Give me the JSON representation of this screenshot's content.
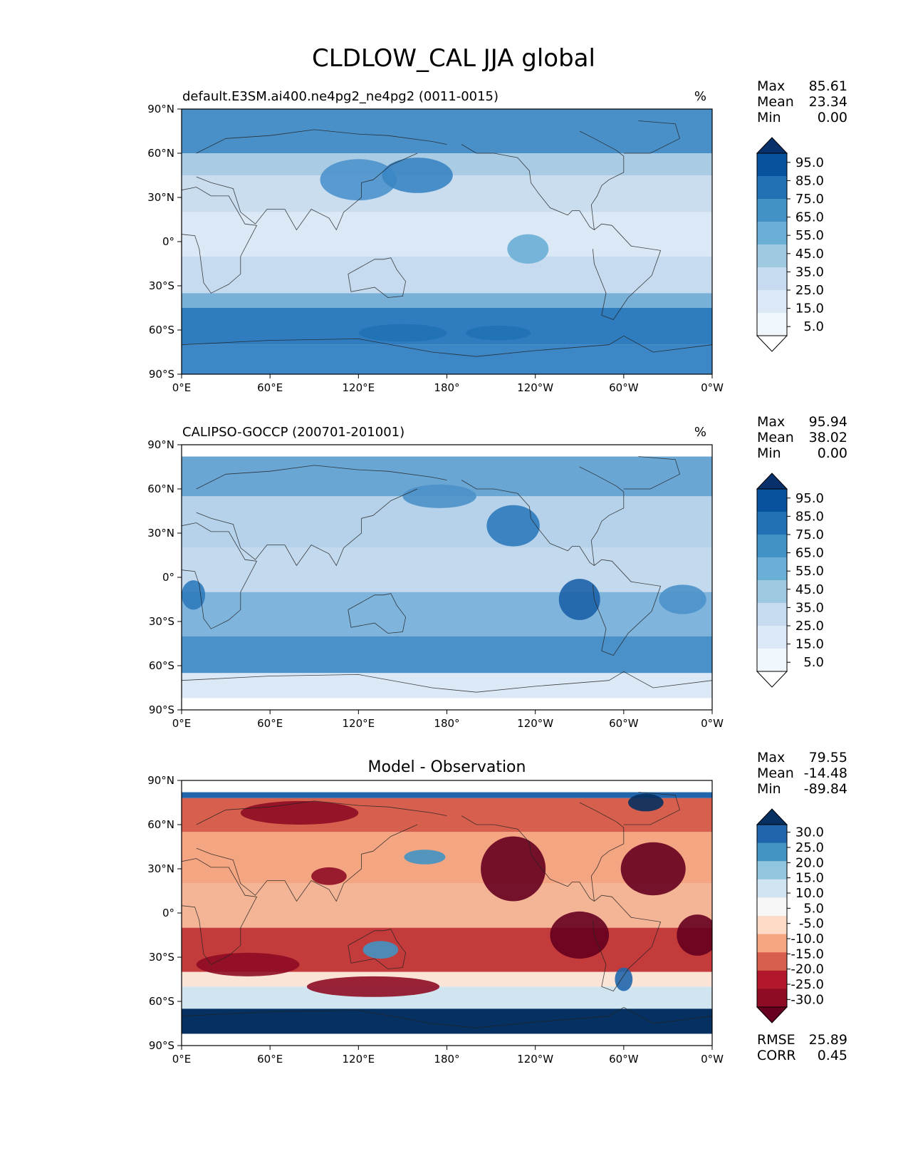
{
  "figure": {
    "title": "CLDLOW_CAL JJA global"
  },
  "chart_data": [
    {
      "type": "heatmap",
      "kind": "map",
      "title": "default.E3SM.ai400.ne4pg2_ne4pg2 (0011-0015)",
      "units": "%",
      "stats": [
        {
          "label": "Max",
          "value": "85.61"
        },
        {
          "label": "Mean",
          "value": "23.34"
        },
        {
          "label": "Min",
          "value": "0.00"
        }
      ],
      "x_ticks": [
        "0°E",
        "60°E",
        "120°E",
        "180°",
        "120°W",
        "60°W",
        "0°W"
      ],
      "y_ticks": [
        "90°N",
        "60°N",
        "30°N",
        "0°",
        "30°S",
        "60°S",
        "90°S"
      ],
      "xlim": [
        0,
        360
      ],
      "ylim": [
        -90,
        90
      ],
      "colorbar": {
        "labels": [
          "95.0",
          "85.0",
          "75.0",
          "65.0",
          "55.0",
          "45.0",
          "35.0",
          "25.0",
          "15.0",
          "5.0"
        ],
        "colors": [
          "#08306b",
          "#08519c",
          "#2171b5",
          "#4292c6",
          "#6baed6",
          "#9ecae1",
          "#c6dbef",
          "#dbe9f6",
          "#eff6fc",
          "#ffffff"
        ],
        "extend": "both"
      },
      "zonal_bands": [
        {
          "lat": [
            60,
            90
          ],
          "color": "#4a90c8"
        },
        {
          "lat": [
            45,
            60
          ],
          "color": "#a9cbe3"
        },
        {
          "lat": [
            20,
            45
          ],
          "color": "#c9ddef"
        },
        {
          "lat": [
            -10,
            20
          ],
          "color": "#dbe9f6"
        },
        {
          "lat": [
            -35,
            -10
          ],
          "color": "#c6dbef"
        },
        {
          "lat": [
            -45,
            -35
          ],
          "color": "#79b0d8"
        },
        {
          "lat": [
            -70,
            -45
          ],
          "color": "#2f7dbf"
        },
        {
          "lat": [
            -90,
            -70
          ],
          "color": "#3d87c6"
        }
      ],
      "patches": [
        {
          "lon": 120,
          "lat": 42,
          "rx": 26,
          "ry": 14,
          "color": "#4d94cc"
        },
        {
          "lon": 160,
          "lat": 45,
          "rx": 24,
          "ry": 12,
          "color": "#3a85c3"
        },
        {
          "lon": 235,
          "lat": -5,
          "rx": 14,
          "ry": 10,
          "color": "#6baed6"
        },
        {
          "lon": 150,
          "lat": -62,
          "rx": 30,
          "ry": 6,
          "color": "#2171b5"
        },
        {
          "lon": 215,
          "lat": -62,
          "rx": 22,
          "ry": 5,
          "color": "#2171b5"
        }
      ]
    },
    {
      "type": "heatmap",
      "kind": "map",
      "title": "CALIPSO-GOCCP (200701-201001)",
      "units": "%",
      "stats": [
        {
          "label": "Max",
          "value": "95.94"
        },
        {
          "label": "Mean",
          "value": "38.02"
        },
        {
          "label": "Min",
          "value": "0.00"
        }
      ],
      "x_ticks": [
        "0°E",
        "60°E",
        "120°E",
        "180°",
        "120°W",
        "60°W",
        "0°W"
      ],
      "y_ticks": [
        "90°N",
        "60°N",
        "30°N",
        "0°",
        "30°S",
        "60°S",
        "90°S"
      ],
      "xlim": [
        0,
        360
      ],
      "ylim": [
        -90,
        90
      ],
      "colorbar": {
        "labels": [
          "95.0",
          "85.0",
          "75.0",
          "65.0",
          "55.0",
          "45.0",
          "35.0",
          "25.0",
          "15.0",
          "5.0"
        ],
        "colors": [
          "#08306b",
          "#08519c",
          "#2171b5",
          "#4292c6",
          "#6baed6",
          "#9ecae1",
          "#c6dbef",
          "#dbe9f6",
          "#eff6fc",
          "#ffffff"
        ],
        "extend": "both"
      },
      "zonal_bands": [
        {
          "lat": [
            82,
            90
          ],
          "color": "#ffffff"
        },
        {
          "lat": [
            55,
            82
          ],
          "color": "#6aa6d4"
        },
        {
          "lat": [
            20,
            55
          ],
          "color": "#b6d2ea"
        },
        {
          "lat": [
            -10,
            20
          ],
          "color": "#c3d9ee"
        },
        {
          "lat": [
            -40,
            -10
          ],
          "color": "#7fb4dc"
        },
        {
          "lat": [
            -65,
            -40
          ],
          "color": "#4b91c9"
        },
        {
          "lat": [
            -82,
            -65
          ],
          "color": "#dbe9f6"
        },
        {
          "lat": [
            -90,
            -82
          ],
          "color": "#ffffff"
        }
      ],
      "patches": [
        {
          "lon": 225,
          "lat": 35,
          "rx": 18,
          "ry": 14,
          "color": "#2f7abd"
        },
        {
          "lon": 270,
          "lat": -15,
          "rx": 14,
          "ry": 14,
          "color": "#1c62a8"
        },
        {
          "lon": 8,
          "lat": -12,
          "rx": 8,
          "ry": 10,
          "color": "#2f7abd"
        },
        {
          "lon": 340,
          "lat": -15,
          "rx": 16,
          "ry": 10,
          "color": "#4b91c9"
        },
        {
          "lon": 175,
          "lat": 55,
          "rx": 25,
          "ry": 8,
          "color": "#4b91c9"
        }
      ]
    },
    {
      "type": "heatmap",
      "kind": "map",
      "title": "Model - Observation",
      "units": "",
      "stats": [
        {
          "label": "Max",
          "value": "79.55"
        },
        {
          "label": "Mean",
          "value": "-14.48"
        },
        {
          "label": "Min",
          "value": "-89.84"
        }
      ],
      "metrics": [
        {
          "label": "RMSE",
          "value": "25.89"
        },
        {
          "label": "CORR",
          "value": "0.45"
        }
      ],
      "x_ticks": [
        "0°E",
        "60°E",
        "120°E",
        "180°",
        "120°W",
        "60°W",
        "0°W"
      ],
      "y_ticks": [
        "90°N",
        "60°N",
        "30°N",
        "0°",
        "30°S",
        "60°S",
        "90°S"
      ],
      "xlim": [
        0,
        360
      ],
      "ylim": [
        -90,
        90
      ],
      "colorbar": {
        "labels": [
          "30.0",
          "25.0",
          "20.0",
          "15.0",
          "10.0",
          "5.0",
          "-5.0",
          "-10.0",
          "-15.0",
          "-20.0",
          "-25.0",
          "-30.0"
        ],
        "colors": [
          "#053061",
          "#2166ac",
          "#4393c3",
          "#92c5de",
          "#d1e5f0",
          "#f7f7f7",
          "#fddbc7",
          "#f4a582",
          "#d6604d",
          "#b2182b",
          "#8e0c25",
          "#67001f"
        ],
        "extend": "both"
      },
      "zonal_bands": [
        {
          "lat": [
            82,
            90
          ],
          "color": "#ffffff"
        },
        {
          "lat": [
            78,
            82
          ],
          "color": "#2166ac"
        },
        {
          "lat": [
            55,
            78
          ],
          "color": "#d6604d"
        },
        {
          "lat": [
            20,
            55
          ],
          "color": "#f4a582"
        },
        {
          "lat": [
            -10,
            20
          ],
          "color": "#f4b496"
        },
        {
          "lat": [
            -40,
            -10
          ],
          "color": "#c33b3b"
        },
        {
          "lat": [
            -50,
            -40
          ],
          "color": "#fbe3d6"
        },
        {
          "lat": [
            -65,
            -50
          ],
          "color": "#d1e5f0"
        },
        {
          "lat": [
            -82,
            -65
          ],
          "color": "#053061"
        },
        {
          "lat": [
            -90,
            -82
          ],
          "color": "#ffffff"
        }
      ],
      "patches": [
        {
          "lon": 80,
          "lat": 68,
          "rx": 40,
          "ry": 8,
          "color": "#8e0c25"
        },
        {
          "lon": 225,
          "lat": 30,
          "rx": 22,
          "ry": 22,
          "color": "#67001f"
        },
        {
          "lon": 320,
          "lat": 30,
          "rx": 22,
          "ry": 18,
          "color": "#67001f"
        },
        {
          "lon": 270,
          "lat": -15,
          "rx": 20,
          "ry": 16,
          "color": "#67001f"
        },
        {
          "lon": 350,
          "lat": -15,
          "rx": 14,
          "ry": 14,
          "color": "#67001f"
        },
        {
          "lon": 130,
          "lat": -50,
          "rx": 45,
          "ry": 7,
          "color": "#8e0c25"
        },
        {
          "lon": 45,
          "lat": -35,
          "rx": 35,
          "ry": 8,
          "color": "#8e0c25"
        },
        {
          "lon": 165,
          "lat": 38,
          "rx": 14,
          "ry": 5,
          "color": "#4393c3"
        },
        {
          "lon": 135,
          "lat": -25,
          "rx": 12,
          "ry": 6,
          "color": "#4393c3"
        },
        {
          "lon": 300,
          "lat": -45,
          "rx": 6,
          "ry": 8,
          "color": "#2166ac"
        },
        {
          "lon": 315,
          "lat": 75,
          "rx": 12,
          "ry": 6,
          "color": "#053061"
        },
        {
          "lon": 100,
          "lat": 25,
          "rx": 12,
          "ry": 6,
          "color": "#8e0c25"
        }
      ]
    }
  ]
}
